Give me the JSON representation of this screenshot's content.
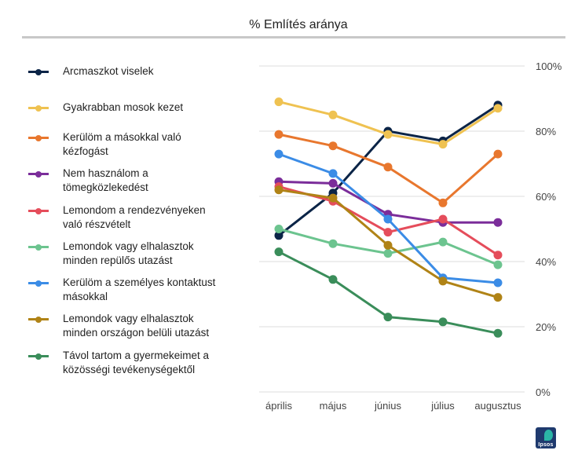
{
  "chart_data": {
    "type": "line",
    "title": "% Említés aránya",
    "categories": [
      "április",
      "május",
      "június",
      "július",
      "augusztus"
    ],
    "ylim": [
      0,
      100
    ],
    "y_ticks": [
      "0%",
      "20%",
      "40%",
      "60%",
      "80%",
      "100%"
    ],
    "legend_position": "left",
    "grid": true,
    "series": [
      {
        "name": "Arcmaszkot viselek",
        "color": "#0b2447",
        "values": [
          48,
          61,
          80,
          77,
          88
        ]
      },
      {
        "name": "Gyakrabban mosok kezet",
        "color": "#efc251",
        "values": [
          89,
          85,
          79,
          76,
          87
        ]
      },
      {
        "name": "Kerülöm a másokkal való kézfogást",
        "color": "#e8772e",
        "values": [
          79,
          75.5,
          69,
          58,
          73
        ]
      },
      {
        "name": "Nem használom a tömegközlekedést",
        "color": "#7b2d9a",
        "values": [
          64.5,
          64,
          54.5,
          52,
          52
        ]
      },
      {
        "name": "Lemondom a rendezvényeken való részvételt",
        "color": "#e54d5b",
        "values": [
          63,
          58.5,
          49,
          53,
          42
        ]
      },
      {
        "name": "Lemondok vagy elhalasztok minden repülős utazást",
        "color": "#6cc48f",
        "values": [
          50,
          45.5,
          42.5,
          46,
          39
        ]
      },
      {
        "name": "Kerülöm a személyes kontaktust másokkal",
        "color": "#3b8ce6",
        "values": [
          73,
          67,
          53,
          35,
          33.5
        ]
      },
      {
        "name": "Lemondok vagy elhalasztok minden országon belüli utazást",
        "color": "#b08316",
        "values": [
          62,
          59.5,
          45,
          34,
          29
        ]
      },
      {
        "name": "Távol tartom a gyermekeimet a közösségi tevékenységektől",
        "color": "#3a8d5a",
        "values": [
          43,
          34.5,
          23,
          21.5,
          18
        ]
      }
    ]
  },
  "legend": [
    {
      "line1": "Arcmaszkot viselek",
      "line2": ""
    },
    {
      "line1": "Gyakrabban mosok kezet",
      "line2": ""
    },
    {
      "line1": "Kerülöm a másokkal való",
      "line2": "kézfogást"
    },
    {
      "line1": "Nem használom a",
      "line2": "tömegközlekedést"
    },
    {
      "line1": "Lemondom a rendezvényeken",
      "line2": "való részvételt"
    },
    {
      "line1": "Lemondok vagy elhalasztok",
      "line2": "minden repülős utazást"
    },
    {
      "line1": "Kerülöm a személyes kontaktust",
      "line2": "másokkal"
    },
    {
      "line1": "Lemondok vagy elhalasztok",
      "line2": "minden országon belüli utazást"
    },
    {
      "line1": "Távol tartom a gyermekeimet a",
      "line2": "közösségi tevékenységektől"
    }
  ],
  "logo_text": "Ipsos"
}
